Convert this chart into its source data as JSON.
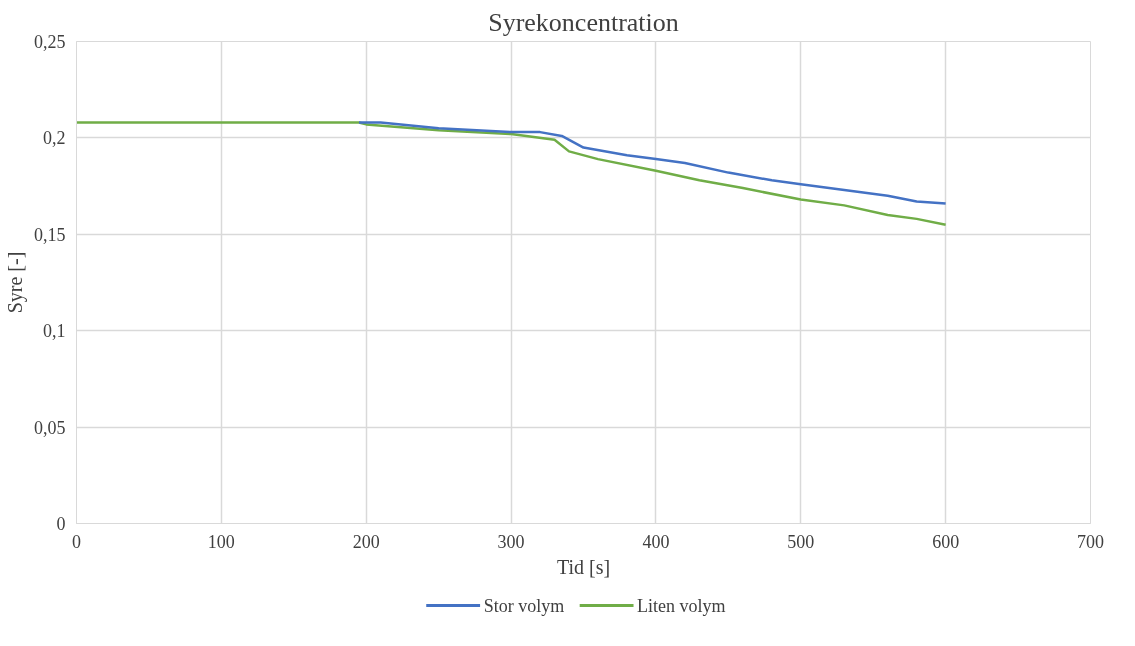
{
  "chart_data": {
    "type": "line",
    "title": "Syrekoncentration",
    "xlabel": "Tid [s]",
    "ylabel": "Syre [-]",
    "xlim": [
      0,
      700
    ],
    "xticks": [
      0,
      100,
      200,
      300,
      400,
      500,
      600,
      700
    ],
    "ylim": [
      0,
      0.25
    ],
    "yticks": [
      {
        "value": 0,
        "label": "0"
      },
      {
        "value": 0.05,
        "label": "0,05"
      },
      {
        "value": 0.1,
        "label": "0,1"
      },
      {
        "value": 0.15,
        "label": "0,15"
      },
      {
        "value": 0.2,
        "label": "0,2"
      },
      {
        "value": 0.25,
        "label": "0,25"
      }
    ],
    "grid": true,
    "legend": "bottom",
    "marker": "none",
    "line_style": "solid",
    "series": [
      {
        "name": "Stor volym",
        "color": "#4472c4",
        "x": [
          195,
          210,
          250,
          300,
          320,
          335,
          350,
          380,
          400,
          420,
          450,
          480,
          500,
          530,
          560,
          580,
          600
        ],
        "values": [
          0.208,
          0.208,
          0.205,
          0.203,
          0.203,
          0.201,
          0.195,
          0.191,
          0.189,
          0.187,
          0.182,
          0.178,
          0.176,
          0.173,
          0.17,
          0.167,
          0.166
        ]
      },
      {
        "name": "Liten volym",
        "color": "#70ad47",
        "x": [
          0,
          100,
          195,
          200,
          250,
          300,
          330,
          340,
          360,
          400,
          430,
          460,
          500,
          530,
          560,
          580,
          600
        ],
        "values": [
          0.208,
          0.208,
          0.208,
          0.207,
          0.204,
          0.202,
          0.199,
          0.193,
          0.189,
          0.183,
          0.178,
          0.174,
          0.168,
          0.165,
          0.16,
          0.158,
          0.155
        ]
      }
    ]
  }
}
